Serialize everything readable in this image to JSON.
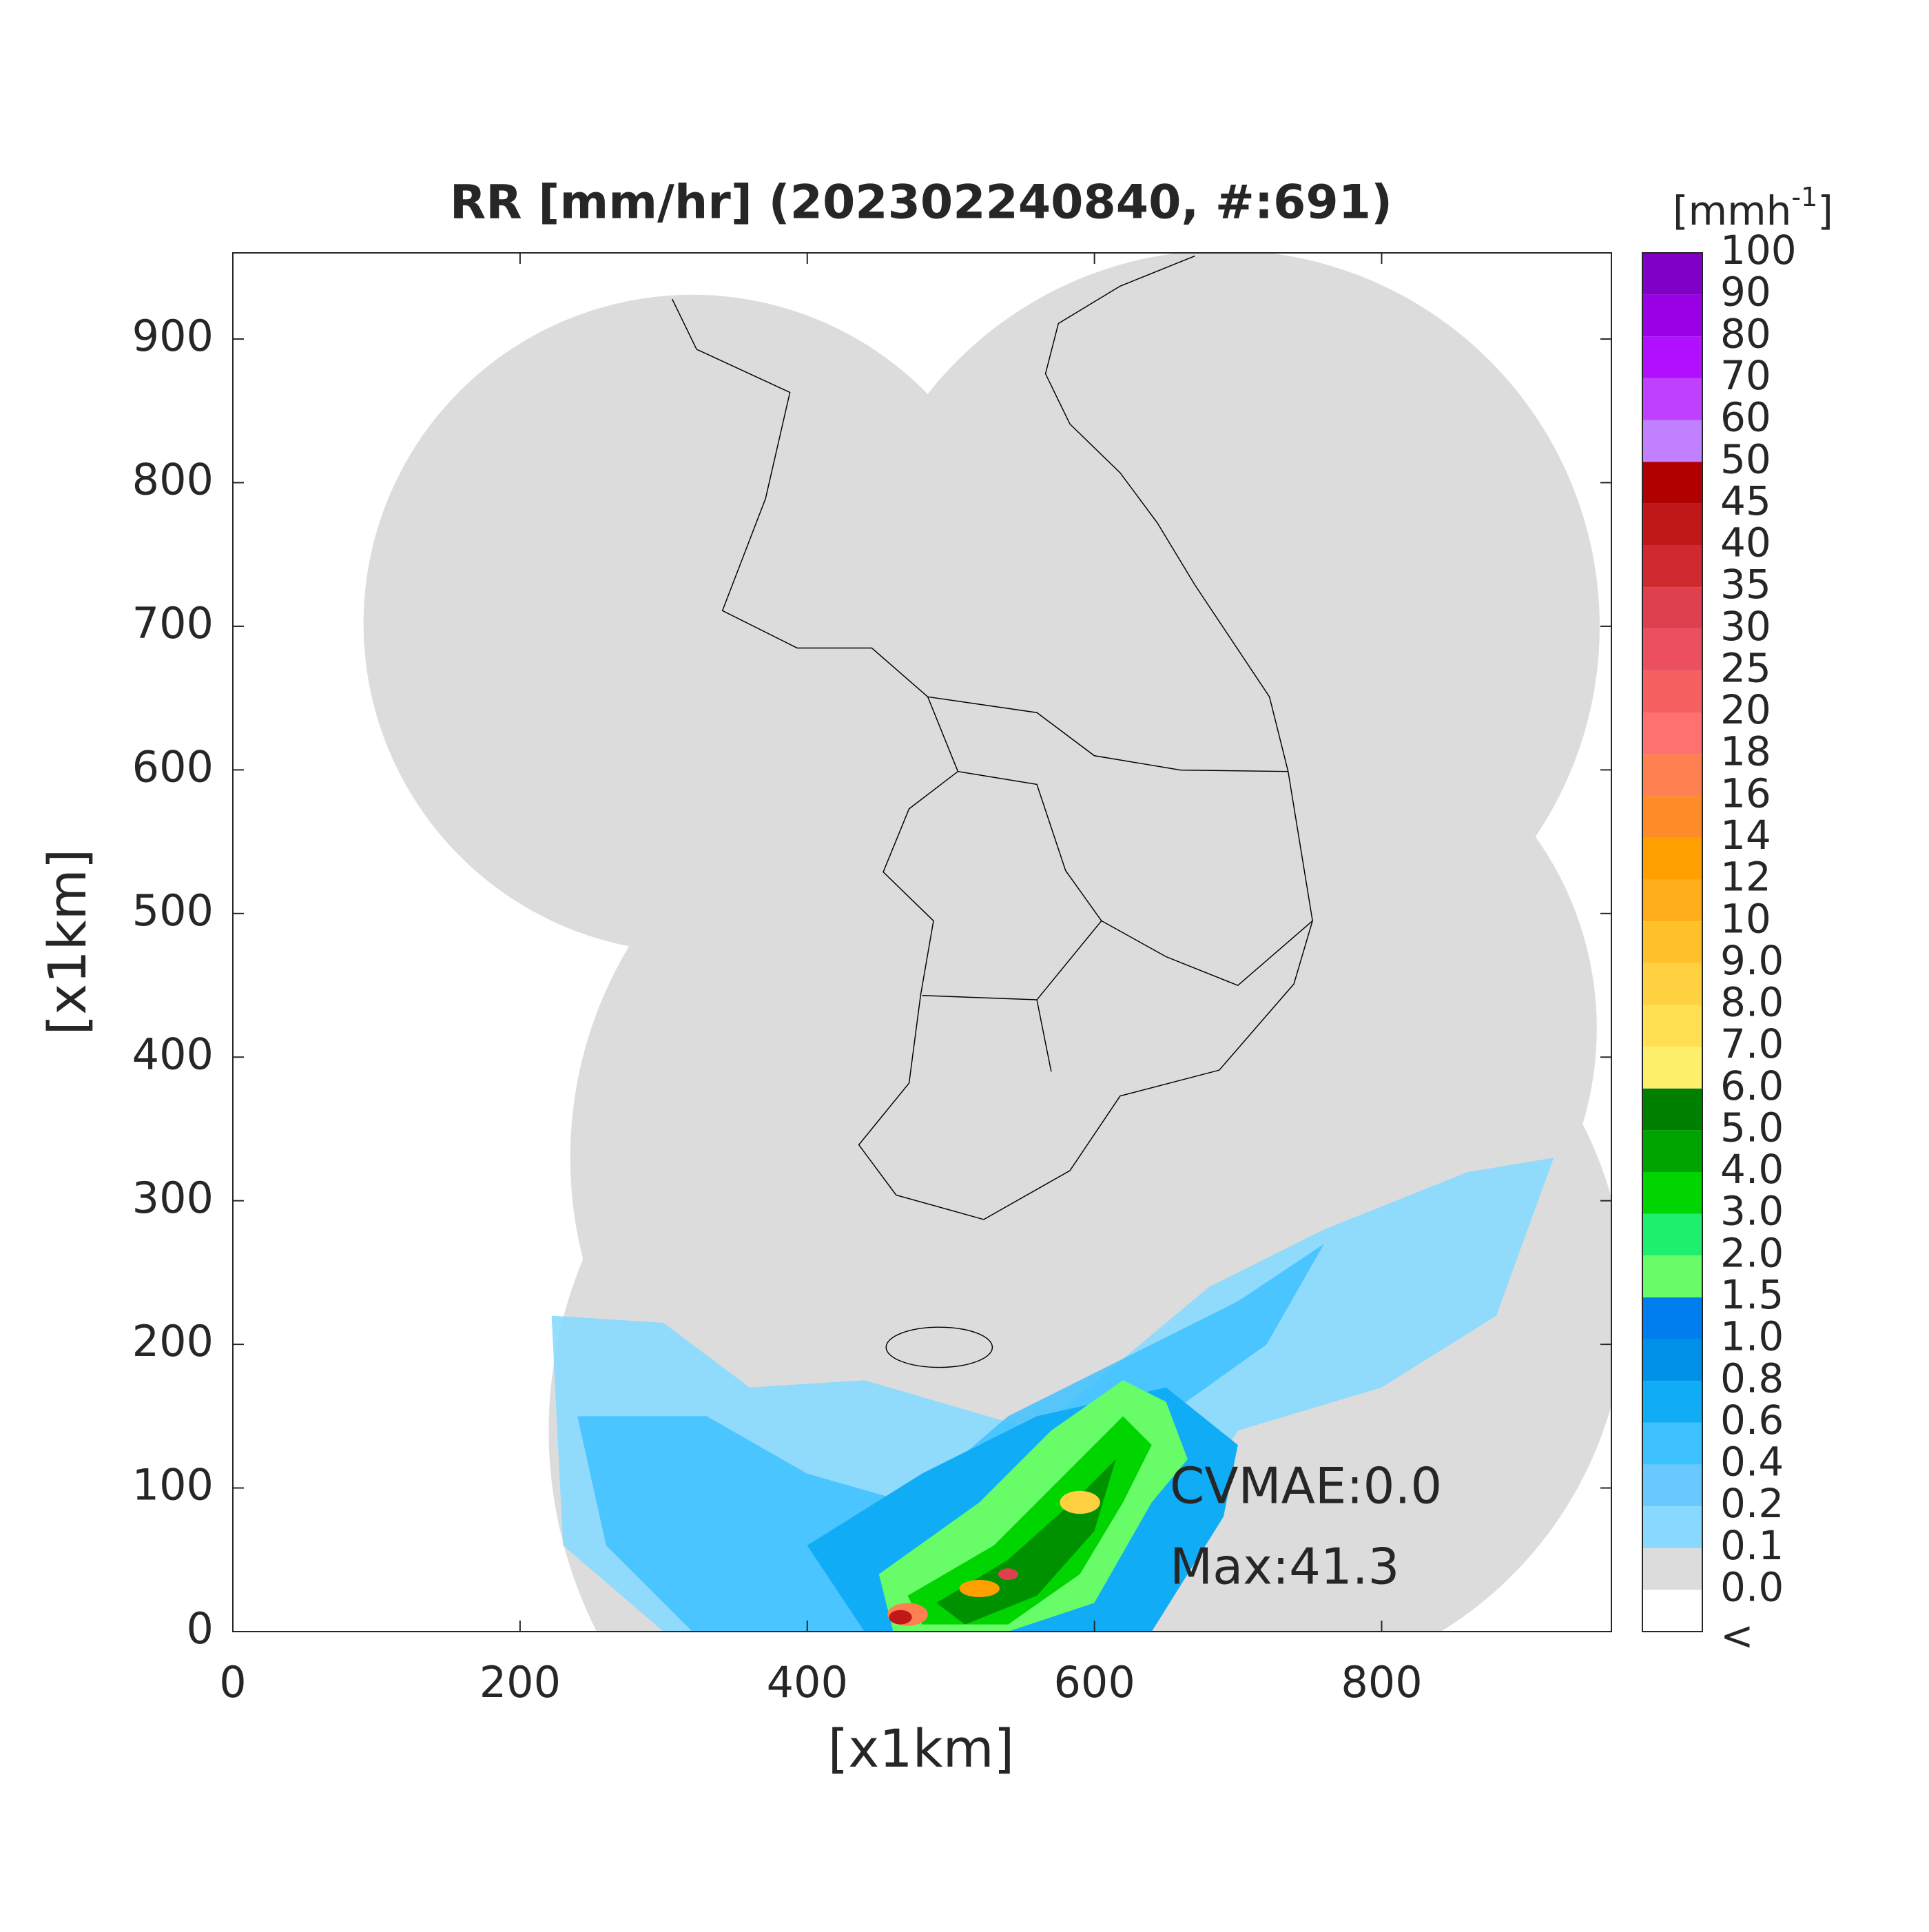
{
  "map": {
    "title": "RR [mm/hr] (202302240840, #:691)",
    "xlabel": "[x1km]",
    "ylabel": "[x1km]",
    "xlim": [
      0,
      960
    ],
    "ylim": [
      0,
      960
    ],
    "xticks": [
      0,
      200,
      400,
      600,
      800
    ],
    "yticks": [
      0,
      100,
      200,
      300,
      400,
      500,
      600,
      700,
      800,
      900
    ],
    "annotations": [
      "CVMAE:0.0",
      "Max:41.3"
    ],
    "colorbar": {
      "unit": {
        "base": "[mmh",
        "sup": "-1",
        "close": "]"
      },
      "labels": [
        "<",
        "0.0",
        "0.1",
        "0.2",
        "0.4",
        "0.6",
        "0.8",
        "1.0",
        "1.5",
        "2.0",
        "3.0",
        "4.0",
        "5.0",
        "6.0",
        "7.0",
        "8.0",
        "9.0",
        "10",
        "12",
        "14",
        "16",
        "18",
        "20",
        "25",
        "30",
        "35",
        "40",
        "45",
        "50",
        "60",
        "70",
        "80",
        "90",
        "100"
      ],
      "colors": [
        "#ffffff",
        "#dcdcdc",
        "#87d9ff",
        "#69c8ff",
        "#3ec1ff",
        "#10acf5",
        "#0090e8",
        "#007ef0",
        "#69fc69",
        "#1ef06e",
        "#00d500",
        "#00a400",
        "#008000",
        "#fff06b",
        "#ffe050",
        "#ffd040",
        "#ffc02a",
        "#ffad1a",
        "#ffa000",
        "#ff8c28",
        "#ff8050",
        "#ff7070",
        "#f76060",
        "#ec5060",
        "#de4050",
        "#cf2a30",
        "#c01818",
        "#b00000",
        "#c080ff",
        "#c040ff",
        "#b010ff",
        "#9a00e6",
        "#8000c8",
        "#333333"
      ]
    }
  }
}
